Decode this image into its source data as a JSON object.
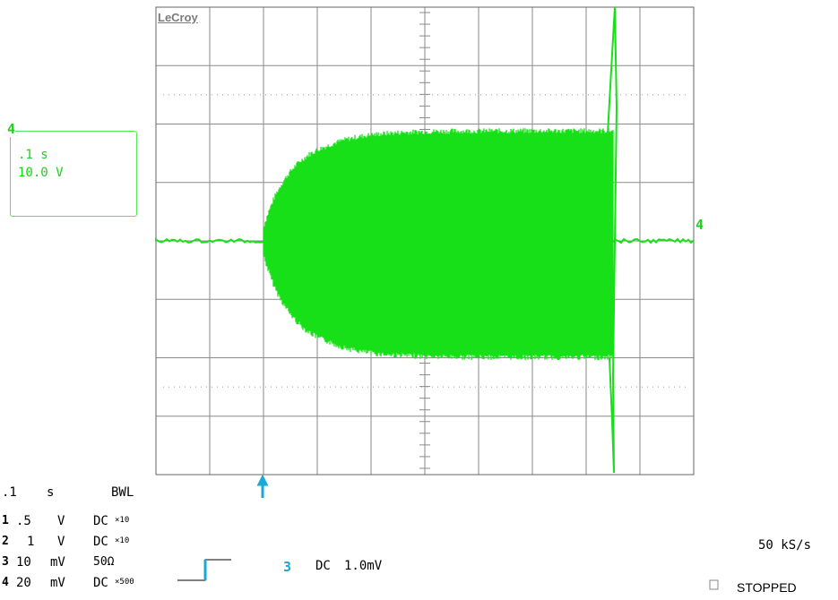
{
  "brand": "LeCroy",
  "colors": {
    "trace": "#18e018",
    "grid": "#8a8a8a",
    "dots": "#9a9a9a",
    "marker": "#19a9d6",
    "box": "#55e855"
  },
  "zoom_trace": {
    "channel": "4",
    "timebase": ".1 s",
    "volts_per_div": "10.0 V"
  },
  "trace_marker": "4",
  "trigger_marker_icon": "up-arrow-icon",
  "timebase": {
    "value": ".1",
    "unit": "s",
    "bandwidth_limit": "BWL"
  },
  "channels": [
    {
      "id": "1",
      "volts": ".5",
      "unit": "V",
      "coupling": "DC",
      "probe": "×10"
    },
    {
      "id": "2",
      "volts": "1",
      "unit": "V",
      "coupling": "DC",
      "probe": "×10"
    },
    {
      "id": "3",
      "volts": "10",
      "unit": "mV",
      "coupling": "50Ω",
      "probe": ""
    },
    {
      "id": "4",
      "volts": "20",
      "unit": "mV",
      "coupling": "DC",
      "probe": "×500"
    }
  ],
  "trigger": {
    "channel": "3",
    "coupling": "DC",
    "level": "1.0mV",
    "slope_icon": "rising-edge-icon"
  },
  "sample_rate": "50 kS/s",
  "acquisition": {
    "status": "STOPPED",
    "indicator_icon": "square-indicator-icon"
  }
}
